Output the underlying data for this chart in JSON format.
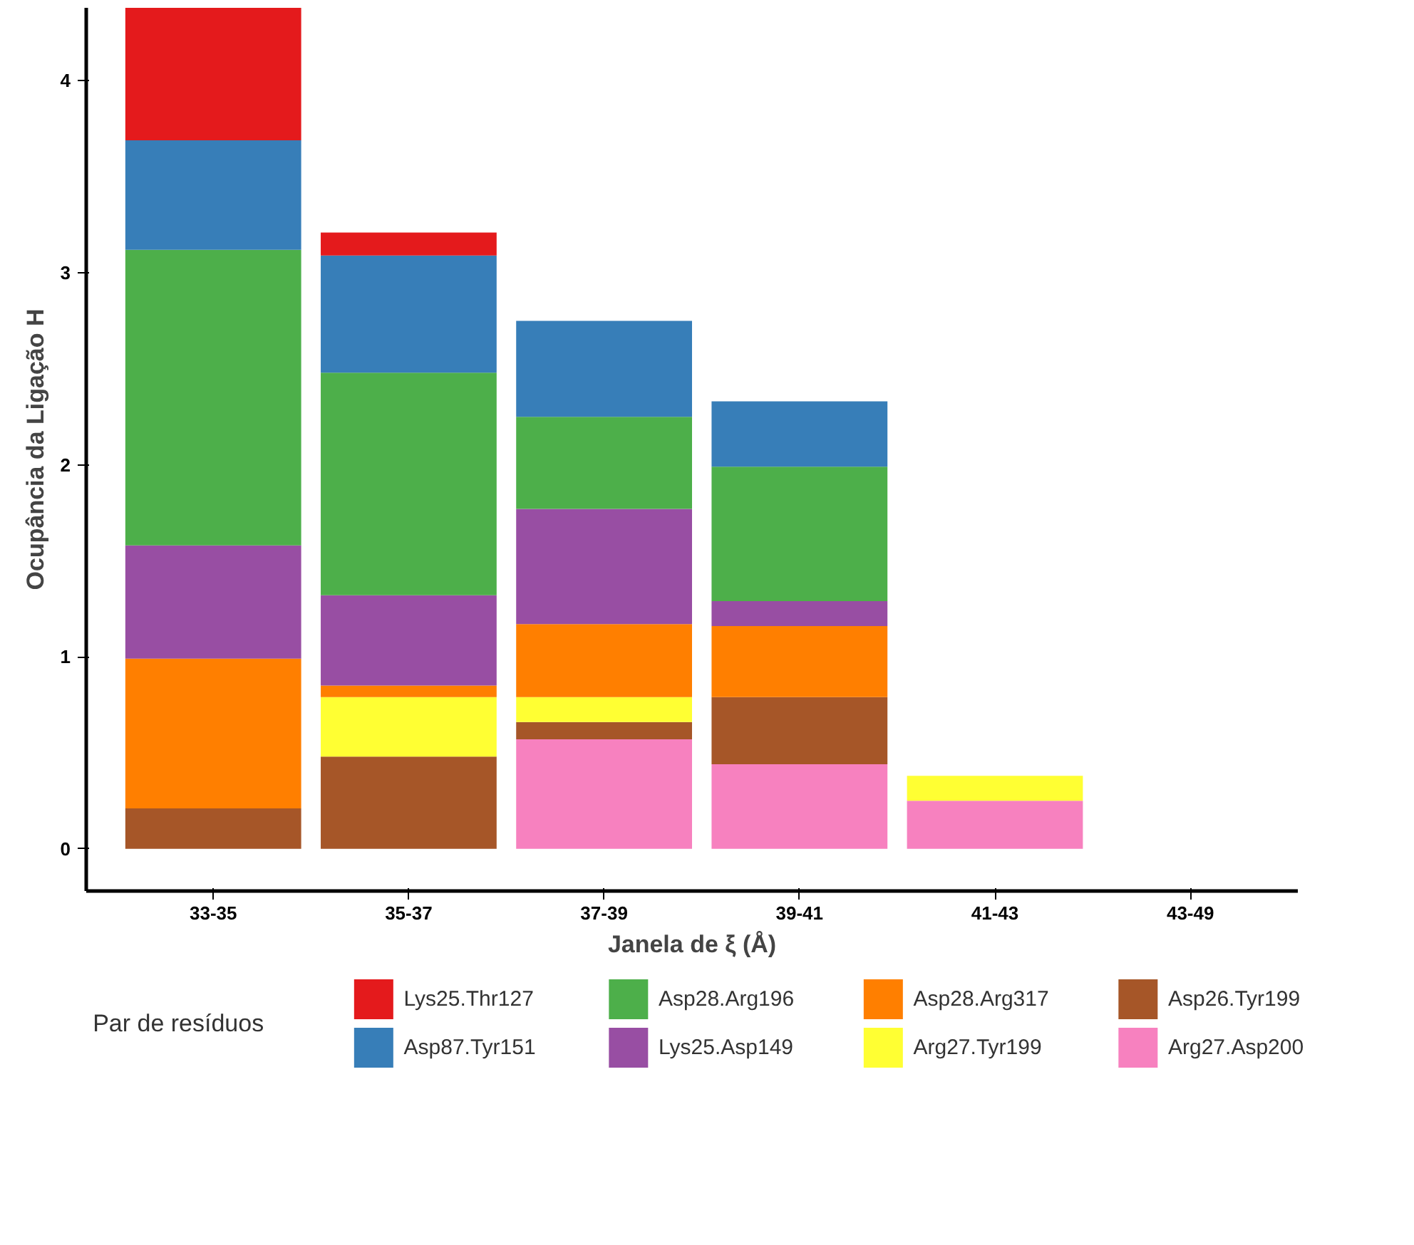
{
  "chart_data": {
    "type": "bar",
    "stacked": true,
    "xlabel": "Janela de ξ (Å)",
    "ylabel": "Ocupância da Ligação H",
    "legend_title": "Par de resíduos",
    "legend": "bottom",
    "grid": false,
    "categories": [
      "33-35",
      "35-37",
      "37-39",
      "39-41",
      "41-43",
      "43-49"
    ],
    "ylim": [
      -0.22,
      4.38
    ],
    "yticks": [
      0,
      1,
      2,
      3,
      4
    ],
    "series": [
      {
        "name": "Arg27.Asp200",
        "color": "#f781bf",
        "values": [
          0,
          0,
          0.57,
          0.44,
          0.25,
          0
        ]
      },
      {
        "name": "Asp26.Tyr199",
        "color": "#a65628",
        "values": [
          0.21,
          0.48,
          0.09,
          0.35,
          0,
          0
        ]
      },
      {
        "name": "Arg27.Tyr199",
        "color": "#ffff33",
        "values": [
          0,
          0.31,
          0.13,
          0,
          0.13,
          0
        ]
      },
      {
        "name": "Asp28.Arg317",
        "color": "#ff7f00",
        "values": [
          0.78,
          0.06,
          0.38,
          0.37,
          0,
          0
        ]
      },
      {
        "name": "Lys25.Asp149",
        "color": "#984ea3",
        "values": [
          0.59,
          0.47,
          0.6,
          0.13,
          0,
          0
        ]
      },
      {
        "name": "Asp28.Arg196",
        "color": "#4daf4a",
        "values": [
          1.54,
          1.16,
          0.48,
          0.7,
          0,
          0
        ]
      },
      {
        "name": "Asp87.Tyr151",
        "color": "#377eb8",
        "values": [
          0.57,
          0.61,
          0.5,
          0.34,
          0,
          0
        ]
      },
      {
        "name": "Lys25.Thr127",
        "color": "#e41a1c",
        "values": [
          0.69,
          0.12,
          0,
          0,
          0,
          0
        ]
      }
    ]
  }
}
